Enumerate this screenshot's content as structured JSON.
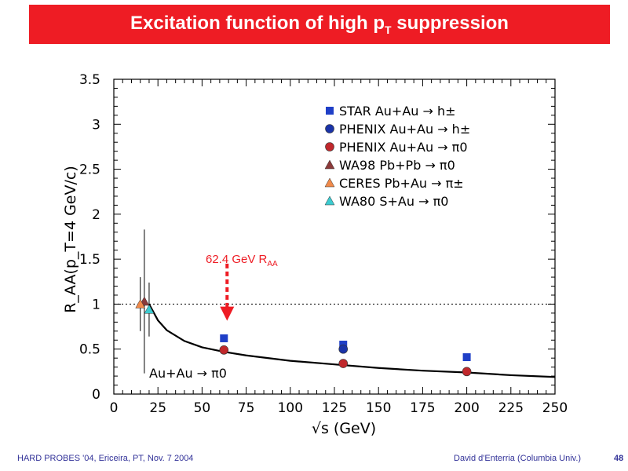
{
  "slide": {
    "title_main": "Excitation function of  high p",
    "title_sub": "T",
    "title_end": " suppression",
    "footer_left": "HARD PROBES '04, Ericeira, PT, Nov. 7 2004",
    "footer_right": "David d'Enterria (Columbia Univ.)",
    "page_number": "48"
  },
  "colors": {
    "title_bg": "#ee1c24",
    "star": "#1f3fc7",
    "phenix_h": "#1a33a8",
    "phenix_pi0": "#c0282c",
    "wa98": "#8b3a3a",
    "ceres": "#f08a4b",
    "wa80": "#3ccbd0",
    "arrow": "#ee1c24"
  },
  "chart_data": {
    "type": "scatter",
    "xlabel": "√s (GeV)",
    "ylabel": "R_AA(p_T=4 GeV/c)",
    "xlim": [
      0,
      250
    ],
    "ylim": [
      0,
      3.5
    ],
    "xticks": [
      "0",
      "25",
      "50",
      "75",
      "100",
      "125",
      "150",
      "175",
      "200",
      "225",
      "250"
    ],
    "yticks": [
      "0",
      "0.5",
      "1",
      "1.5",
      "2",
      "2.5",
      "3",
      "3.5"
    ],
    "reference_line": 1,
    "legend_position": "top-right",
    "series": [
      {
        "name": "STAR Au+Au → h±",
        "marker": "square",
        "color_key": "star",
        "points": [
          {
            "x": 62.4,
            "y": 0.62
          },
          {
            "x": 130,
            "y": 0.55
          },
          {
            "x": 200,
            "y": 0.41
          }
        ]
      },
      {
        "name": "PHENIX Au+Au → h±",
        "marker": "circle",
        "color_key": "phenix_h",
        "points": [
          {
            "x": 130,
            "y": 0.5
          }
        ]
      },
      {
        "name": "PHENIX Au+Au → π0",
        "marker": "circle",
        "color_key": "phenix_pi0",
        "points": [
          {
            "x": 62.4,
            "y": 0.49
          },
          {
            "x": 130,
            "y": 0.34
          },
          {
            "x": 200,
            "y": 0.25
          }
        ]
      },
      {
        "name": "WA98 Pb+Pb → π0",
        "marker": "triangle",
        "color_key": "wa98",
        "points": [
          {
            "x": 17.3,
            "y": 1.03,
            "err": 0.8
          }
        ]
      },
      {
        "name": "CERES Pb+Au → π±",
        "marker": "triangle",
        "color_key": "ceres",
        "points": [
          {
            "x": 15,
            "y": 1.0,
            "err": 0.3
          }
        ]
      },
      {
        "name": "WA80 S+Au → π0",
        "marker": "triangle",
        "color_key": "wa80",
        "points": [
          {
            "x": 20,
            "y": 0.94,
            "err": 0.3
          }
        ]
      }
    ],
    "theory_curve": {
      "label": "Au+Au → π0",
      "points": [
        [
          20,
          1.0
        ],
        [
          25,
          0.82
        ],
        [
          30,
          0.71
        ],
        [
          40,
          0.59
        ],
        [
          50,
          0.52
        ],
        [
          62.4,
          0.47
        ],
        [
          75,
          0.43
        ],
        [
          100,
          0.37
        ],
        [
          125,
          0.33
        ],
        [
          150,
          0.29
        ],
        [
          175,
          0.26
        ],
        [
          200,
          0.24
        ],
        [
          225,
          0.21
        ],
        [
          250,
          0.19
        ]
      ]
    },
    "annotation": {
      "text": "62.4 GeV R",
      "sub": "AA",
      "x": 62.4,
      "y_from": 1.45,
      "y_to": 0.85
    }
  }
}
